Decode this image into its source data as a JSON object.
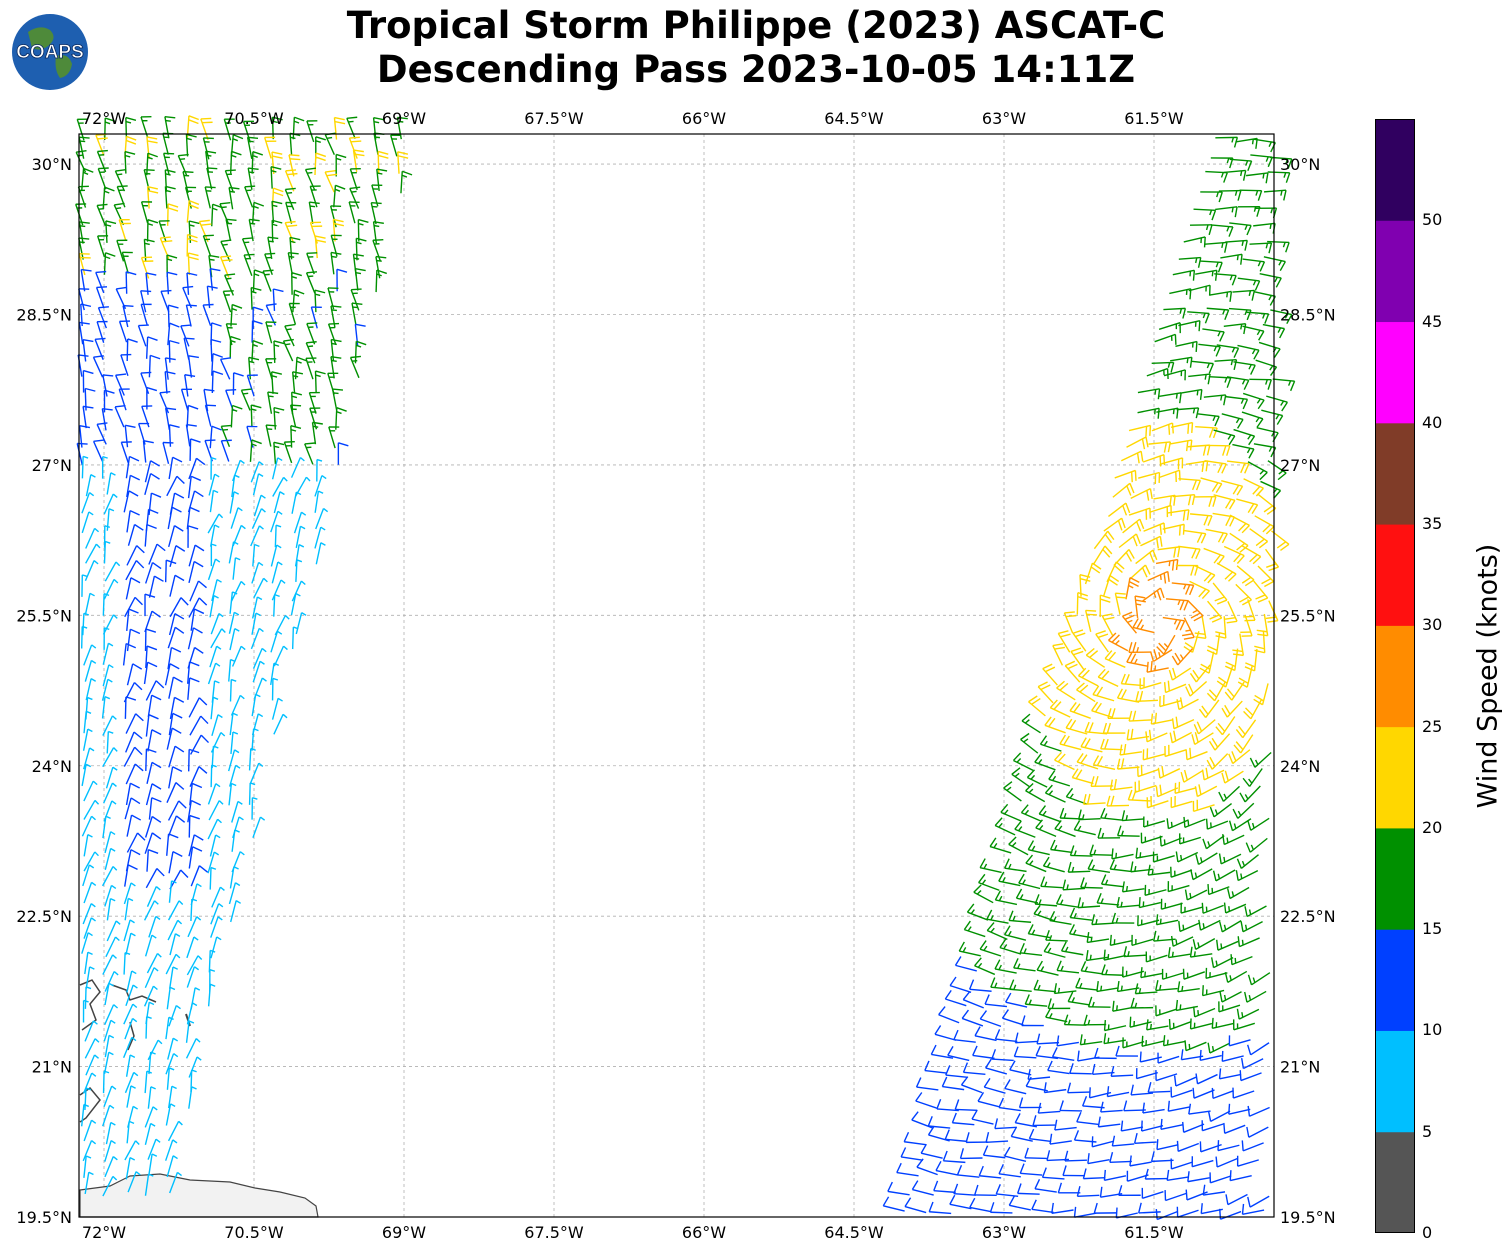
{
  "title": {
    "line1": "Tropical Storm Philippe (2023) ASCAT-C",
    "line2": "Descending Pass 2023-10-05 14:11Z"
  },
  "logo": {
    "text": "COAPS"
  },
  "map": {
    "lon_range": [
      -72.25,
      -60.3
    ],
    "lat_range": [
      19.5,
      30.3
    ],
    "lon_ticks": [
      "72°W",
      "70.5°W",
      "69°W",
      "67.5°W",
      "66°W",
      "64.5°W",
      "63°W",
      "61.5°W"
    ],
    "lon_tick_values": [
      -72,
      -70.5,
      -69,
      -67.5,
      -66,
      -64.5,
      -63,
      -61.5
    ],
    "lat_ticks": [
      "19.5°N",
      "21°N",
      "22.5°N",
      "24°N",
      "25.5°N",
      "27°N",
      "28.5°N",
      "30°N"
    ],
    "lat_tick_values": [
      19.5,
      21,
      22.5,
      24,
      25.5,
      27,
      28.5,
      30
    ],
    "gridlines": true,
    "swaths": [
      {
        "name": "west",
        "description_lon_range": [
          -72.25,
          -69.2
        ]
      },
      {
        "name": "east",
        "description_lon_range": [
          -64.2,
          -60.3
        ]
      }
    ]
  },
  "colorbar": {
    "label": "Wind Speed (knots)",
    "ticks": [
      "0",
      "5",
      "10",
      "15",
      "20",
      "25",
      "30",
      "35",
      "40",
      "45",
      "50"
    ],
    "colors": [
      "#555555",
      "#00bfff",
      "#0040ff",
      "#009000",
      "#ffd700",
      "#ff8c00",
      "#ff1010",
      "#803c28",
      "#ff00ff",
      "#8000b0",
      "#300060"
    ]
  }
}
